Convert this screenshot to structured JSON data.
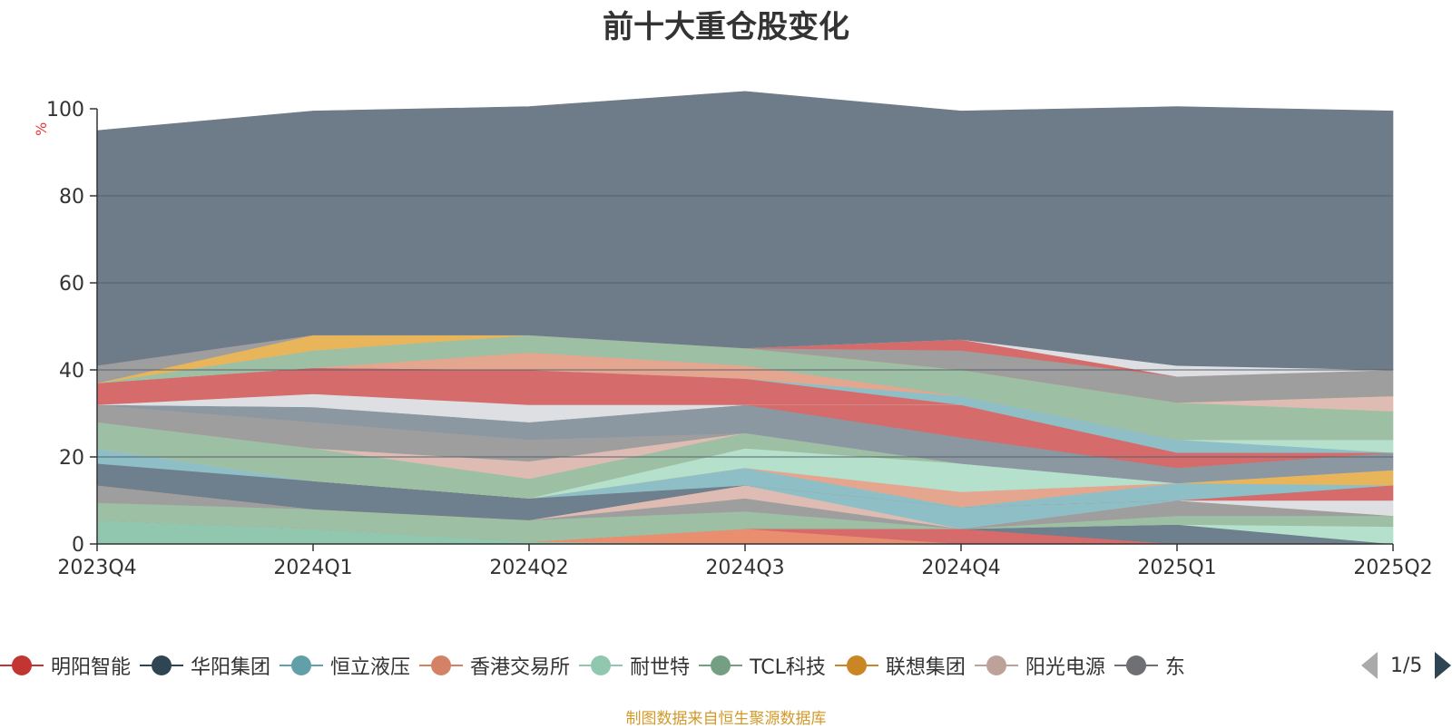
{
  "title": "前十大重仓股变化",
  "unit": "%",
  "source": "制图数据来自恒生聚源数据库",
  "pager": {
    "text": "1/5"
  },
  "legend": [
    {
      "name": "明阳智能",
      "color": "#c23531"
    },
    {
      "name": "华阳集团",
      "color": "#2f4554"
    },
    {
      "name": "恒立液压",
      "color": "#61a0a8"
    },
    {
      "name": "香港交易所",
      "color": "#d48265"
    },
    {
      "name": "耐世特",
      "color": "#91c7ae"
    },
    {
      "name": "TCL科技",
      "color": "#749f83"
    },
    {
      "name": "联想集团",
      "color": "#ca8622"
    },
    {
      "name": "阳光电源",
      "color": "#bda29a"
    },
    {
      "name": "东",
      "color": "#6e7074"
    }
  ],
  "chart_data": {
    "type": "area",
    "stacked": true,
    "categories": [
      "2023Q4",
      "2024Q1",
      "2024Q2",
      "2024Q3",
      "2024Q4",
      "2025Q1",
      "2025Q2"
    ],
    "ylim": [
      0,
      100
    ],
    "yticks": [
      0,
      20,
      40,
      60,
      80,
      100
    ],
    "grid": true,
    "bands": [
      {
        "color": "#91c7ae",
        "values": [
          5.5,
          3.5,
          0.5,
          0,
          0,
          0,
          0
        ]
      },
      {
        "color": "#e98f6f",
        "values": [
          0,
          0,
          0,
          3.5,
          0,
          0,
          0
        ]
      },
      {
        "color": "#d66b6b",
        "values": [
          0,
          0,
          0,
          0,
          3.5,
          0,
          0
        ]
      },
      {
        "color": "#6e7f8d",
        "values": [
          0,
          0,
          0,
          0,
          0,
          4.5,
          0
        ]
      },
      {
        "color": "#b5e0cc",
        "values": [
          0,
          0,
          0,
          0,
          0,
          0,
          4.0
        ]
      },
      {
        "color": "#9dbfa4",
        "values": [
          4.0,
          4.5,
          5.0,
          4.0,
          0,
          2.0,
          2.5
        ]
      },
      {
        "color": "#9e9e9e",
        "values": [
          4.0,
          0,
          0,
          3.0,
          0,
          3.5,
          0
        ]
      },
      {
        "color": "#dfbcb3",
        "values": [
          0,
          0,
          0,
          3.0,
          0,
          0,
          0
        ]
      },
      {
        "color": "#8fbfc6",
        "values": [
          0,
          0,
          0,
          0,
          5.0,
          0,
          0
        ]
      },
      {
        "color": "#e8b55a",
        "values": [
          0,
          0,
          0,
          0,
          0,
          0,
          0
        ]
      },
      {
        "color": "#dddfe3",
        "values": [
          0,
          0,
          0,
          0,
          0,
          0,
          3.5
        ]
      },
      {
        "color": "#d66b6b",
        "values": [
          0,
          0,
          0,
          0,
          0,
          0,
          3.5
        ]
      },
      {
        "color": "#6e7f8d",
        "values": [
          5.0,
          6.5,
          5.0,
          0,
          0,
          0,
          0
        ]
      },
      {
        "color": "#8fbfc6",
        "values": [
          3.5,
          0,
          0,
          4.0,
          0,
          4.0,
          0
        ]
      },
      {
        "color": "#e8b55a",
        "values": [
          0,
          0,
          0,
          0,
          0,
          0,
          3.5
        ]
      },
      {
        "color": "#e5a690",
        "values": [
          0,
          0,
          0,
          0,
          3.5,
          0,
          0
        ]
      },
      {
        "color": "#b5e0cc",
        "values": [
          0,
          0,
          0,
          4.5,
          6.5,
          0,
          0
        ]
      },
      {
        "color": "#9dbfa4",
        "values": [
          6.0,
          7.5,
          4.5,
          3.5,
          0,
          0,
          0
        ]
      },
      {
        "color": "#dfbcb3",
        "values": [
          0,
          0,
          4.0,
          0,
          0,
          0,
          0
        ]
      },
      {
        "color": "#9e9e9e",
        "values": [
          4.0,
          6.0,
          5.0,
          0,
          0,
          0,
          0
        ]
      },
      {
        "color": "#8b98a2",
        "values": [
          0,
          3.5,
          4.0,
          6.5,
          6.0,
          3.5,
          4.0
        ]
      },
      {
        "color": "#d66b6b",
        "values": [
          0,
          0,
          0,
          0,
          7.5,
          3.5,
          0
        ]
      },
      {
        "color": "#8fbfc6",
        "values": [
          0,
          0,
          0,
          0,
          0,
          3.0,
          0
        ]
      },
      {
        "color": "#b5e0cc",
        "values": [
          0,
          0,
          0,
          0,
          0,
          0,
          3.0
        ]
      },
      {
        "color": "#dddfe3",
        "values": [
          0,
          3.0,
          4.0,
          0,
          0,
          0,
          0
        ]
      },
      {
        "color": "#d66b6b",
        "values": [
          5.0,
          6.0,
          8.0,
          6.0,
          0,
          0,
          0
        ]
      },
      {
        "color": "#8fbfc6",
        "values": [
          0,
          0,
          0,
          0,
          2.0,
          0,
          0
        ]
      },
      {
        "color": "#e5a690",
        "values": [
          0,
          0,
          4.0,
          3.0,
          0,
          0,
          0
        ]
      },
      {
        "color": "#9dbfa4",
        "values": [
          0,
          4.0,
          4.0,
          4.0,
          6.0,
          8.5,
          6.5
        ]
      },
      {
        "color": "#dfbcb3",
        "values": [
          0,
          0,
          0,
          0,
          0,
          0,
          3.5
        ]
      },
      {
        "color": "#e8b55a",
        "values": [
          0,
          3.5,
          0,
          0,
          0,
          0,
          0
        ]
      },
      {
        "color": "#9e9e9e",
        "values": [
          4.0,
          0,
          0,
          0,
          4.5,
          6.0,
          6.0
        ]
      },
      {
        "color": "#d66b6b",
        "values": [
          0,
          0,
          0,
          0,
          2.5,
          0,
          0
        ]
      },
      {
        "color": "#dddfe3",
        "values": [
          0,
          0,
          0,
          0,
          0,
          2.5,
          0
        ]
      },
      {
        "color": "#6e7c89",
        "values": [
          54.0,
          51.5,
          52.5,
          59.0,
          52.5,
          59.5,
          59.5
        ]
      }
    ]
  }
}
